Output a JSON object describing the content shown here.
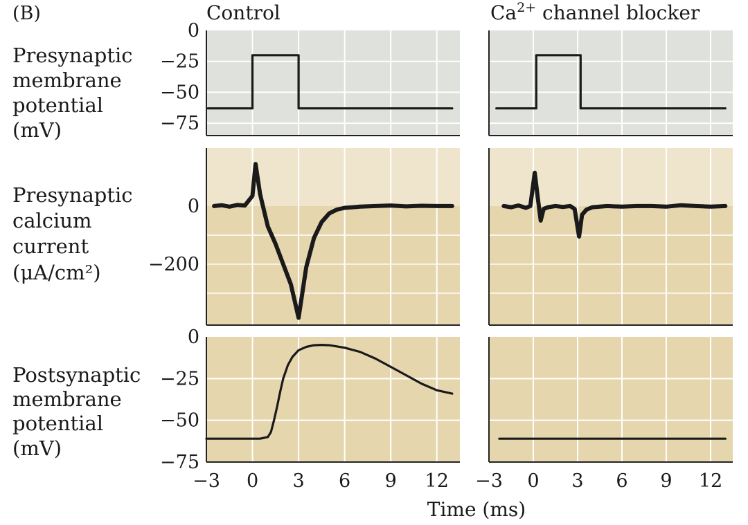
{
  "figure_label": "(B)",
  "columns": [
    "Control",
    "Ca²⁺ channel blocker"
  ],
  "row_labels": [
    [
      "Presynaptic",
      "membrane",
      "potential",
      "(mV)"
    ],
    [
      "Presynaptic",
      "calcium",
      "current",
      "(μA/cm²)"
    ],
    [
      "Postsynaptic",
      "membrane",
      "potential",
      "(mV)"
    ]
  ],
  "x_axis": {
    "label": "Time (ms)",
    "range": [
      -3,
      13.5
    ],
    "ticks": [
      -3,
      0,
      3,
      6,
      9,
      12
    ],
    "tick_labels": [
      "−3",
      "0",
      "3",
      "6",
      "9",
      "12"
    ]
  },
  "colors": {
    "panel_gray": "#dfe1dd",
    "panel_tan": "#e6d6ae",
    "panel_tan_light": "#efe5cd",
    "grid": "#ffffff",
    "trace": "#1a1a1a"
  },
  "chart_data": [
    {
      "type": "line",
      "panel": "presynaptic-membrane-potential",
      "column": "Control",
      "ylabel": "Presynaptic membrane potential (mV)",
      "ylim": [
        -85,
        0
      ],
      "yticks": [
        0,
        -25,
        -50,
        -75
      ],
      "ytick_labels": [
        "0",
        "−25",
        "−50",
        "−75"
      ],
      "x": [
        -2.9,
        0,
        0,
        3,
        3,
        13
      ],
      "y": [
        -63,
        -63,
        -20,
        -20,
        -63,
        -63
      ]
    },
    {
      "type": "line",
      "panel": "presynaptic-membrane-potential",
      "column": "Ca²⁺ channel blocker",
      "ylabel": "Presynaptic membrane potential (mV)",
      "ylim": [
        -85,
        0
      ],
      "x": [
        -2.5,
        0.2,
        0.2,
        3.2,
        3.2,
        13
      ],
      "y": [
        -63,
        -63,
        -20,
        -20,
        -63,
        -63
      ]
    },
    {
      "type": "line",
      "panel": "presynaptic-calcium-current",
      "column": "Control",
      "ylabel": "Presynaptic calcium current (μA/cm²)",
      "ylim": [
        -410,
        200
      ],
      "yticks": [
        0,
        -200
      ],
      "ytick_labels": [
        "0",
        "−200"
      ],
      "x": [
        -2.5,
        -2.0,
        -1.5,
        -1.0,
        -0.5,
        0,
        0.2,
        0.5,
        1.0,
        1.5,
        2.0,
        2.5,
        3.0,
        3.5,
        4.0,
        4.5,
        5.0,
        5.5,
        6.0,
        7.0,
        8.0,
        9.0,
        10.0,
        11.0,
        12.0,
        13.0
      ],
      "y": [
        0,
        3,
        -2,
        4,
        2,
        35,
        145,
        40,
        -70,
        -130,
        -200,
        -270,
        -385,
        -210,
        -110,
        -55,
        -25,
        -12,
        -6,
        -2,
        0,
        2,
        -1,
        1,
        0,
        0
      ]
    },
    {
      "type": "line",
      "panel": "presynaptic-calcium-current",
      "column": "Ca²⁺ channel blocker",
      "ylabel": "Presynaptic calcium current (μA/cm²)",
      "ylim": [
        -410,
        200
      ],
      "x": [
        -2.0,
        -1.5,
        -1.0,
        -0.5,
        -0.2,
        0.1,
        0.3,
        0.5,
        0.7,
        1.0,
        1.5,
        2.0,
        2.5,
        2.8,
        3.1,
        3.3,
        3.6,
        4.0,
        5.0,
        6.0,
        7.0,
        8.0,
        9.0,
        10.0,
        11.0,
        12.0,
        13.0
      ],
      "y": [
        0,
        -4,
        2,
        -6,
        0,
        115,
        30,
        -50,
        -10,
        -4,
        0,
        -3,
        0,
        -10,
        -105,
        -30,
        -12,
        -4,
        0,
        -2,
        0,
        0,
        -2,
        3,
        0,
        -2,
        0
      ]
    },
    {
      "type": "line",
      "panel": "postsynaptic-membrane-potential",
      "column": "Control",
      "ylabel": "Postsynaptic membrane potential (mV)",
      "ylim": [
        -75,
        0
      ],
      "yticks": [
        0,
        -25,
        -50,
        -75
      ],
      "ytick_labels": [
        "0",
        "−25",
        "−50",
        "−75"
      ],
      "x": [
        -3,
        -1.0,
        0.5,
        1.0,
        1.2,
        1.4,
        1.6,
        1.8,
        2.0,
        2.3,
        2.6,
        3.0,
        3.5,
        4.0,
        4.5,
        5.0,
        6.0,
        7.0,
        8.0,
        9.0,
        10.0,
        11.0,
        12.0,
        13.0
      ],
      "y": [
        -61,
        -61,
        -61,
        -60,
        -57,
        -50,
        -42,
        -33,
        -25,
        -17,
        -12,
        -8,
        -6,
        -5,
        -4.8,
        -5,
        -6.5,
        -9,
        -13,
        -18,
        -23,
        -28,
        -32,
        -34
      ]
    },
    {
      "type": "line",
      "panel": "postsynaptic-membrane-potential",
      "column": "Ca²⁺ channel blocker",
      "ylabel": "Postsynaptic membrane potential (mV)",
      "ylim": [
        -75,
        0
      ],
      "x": [
        -2.3,
        13
      ],
      "y": [
        -61,
        -61
      ]
    }
  ]
}
